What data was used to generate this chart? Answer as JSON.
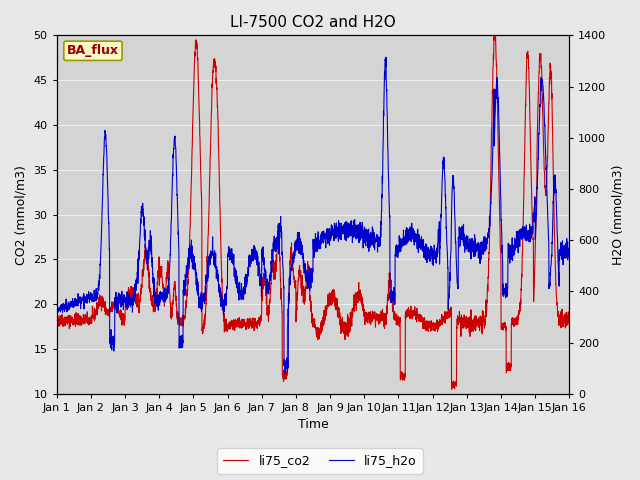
{
  "title": "LI-7500 CO2 and H2O",
  "xlabel": "Time",
  "ylabel_left": "CO2 (mmol/m3)",
  "ylabel_right": "H2O (mmol/m3)",
  "xlim": [
    0,
    15
  ],
  "ylim_left": [
    10,
    50
  ],
  "ylim_right": [
    0,
    1400
  ],
  "xtick_labels": [
    "Jan 1",
    "Jan 2",
    "Jan 3",
    "Jan 4",
    "Jan 5",
    "Jan 6",
    "Jan 7",
    "Jan 8",
    "Jan 9",
    "Jan 10",
    "Jan 11",
    "Jan 12",
    "Jan 13",
    "Jan 14",
    "Jan 15",
    "Jan 16"
  ],
  "yticks_left": [
    10,
    15,
    20,
    25,
    30,
    35,
    40,
    45,
    50
  ],
  "yticks_right": [
    0,
    200,
    400,
    600,
    800,
    1000,
    1200,
    1400
  ],
  "color_co2": "#cc0000",
  "color_h2o": "#0000cc",
  "legend_label_co2": "li75_co2",
  "legend_label_h2o": "li75_h2o",
  "ba_flux_text": "BA_flux",
  "fig_bg_color": "#e8e8e8",
  "plot_bg_color": "#d4d4d4",
  "grid_color": "#f0f0f0",
  "title_fontsize": 11,
  "label_fontsize": 9,
  "tick_fontsize": 8,
  "legend_fontsize": 9,
  "n_points": 3000,
  "seed": 42
}
